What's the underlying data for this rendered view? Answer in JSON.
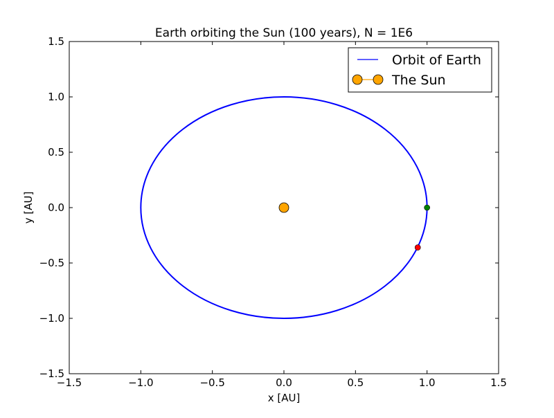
{
  "chart_data": {
    "type": "line",
    "title": "Earth orbiting the Sun (100 years), N = 1E6",
    "xlabel": "x [AU]",
    "ylabel": "y [AU]",
    "xlim": [
      -1.5,
      1.5
    ],
    "ylim": [
      -1.5,
      1.5
    ],
    "xticks": [
      -1.5,
      -1.0,
      -0.5,
      0.0,
      0.5,
      1.0,
      1.5
    ],
    "xtick_labels": [
      "−1.5",
      "−1.0",
      "−0.5",
      "0.0",
      "0.5",
      "1.0",
      "1.5"
    ],
    "yticks": [
      1.5,
      1.0,
      0.5,
      0.0,
      -0.5,
      -1.0,
      -1.5
    ],
    "ytick_labels": [
      "1.5",
      "1.0",
      "0.5",
      "0.0",
      "−0.5",
      "−1.0",
      "−1.5"
    ],
    "grid": false,
    "legend_position": "top-right",
    "series": [
      {
        "name": "Orbit of Earth",
        "kind": "circle",
        "center": [
          0.0,
          0.0
        ],
        "radius": 1.0,
        "color": "#0000ff"
      },
      {
        "name": "The Sun",
        "kind": "marker",
        "x": [
          0.0
        ],
        "y": [
          0.0
        ],
        "color": "#ffa500"
      }
    ],
    "extra_points": [
      {
        "x": 1.0,
        "y": 0.0,
        "color": "#008000"
      },
      {
        "x": 0.935,
        "y": -0.36,
        "color": "#ff0000"
      }
    ]
  }
}
